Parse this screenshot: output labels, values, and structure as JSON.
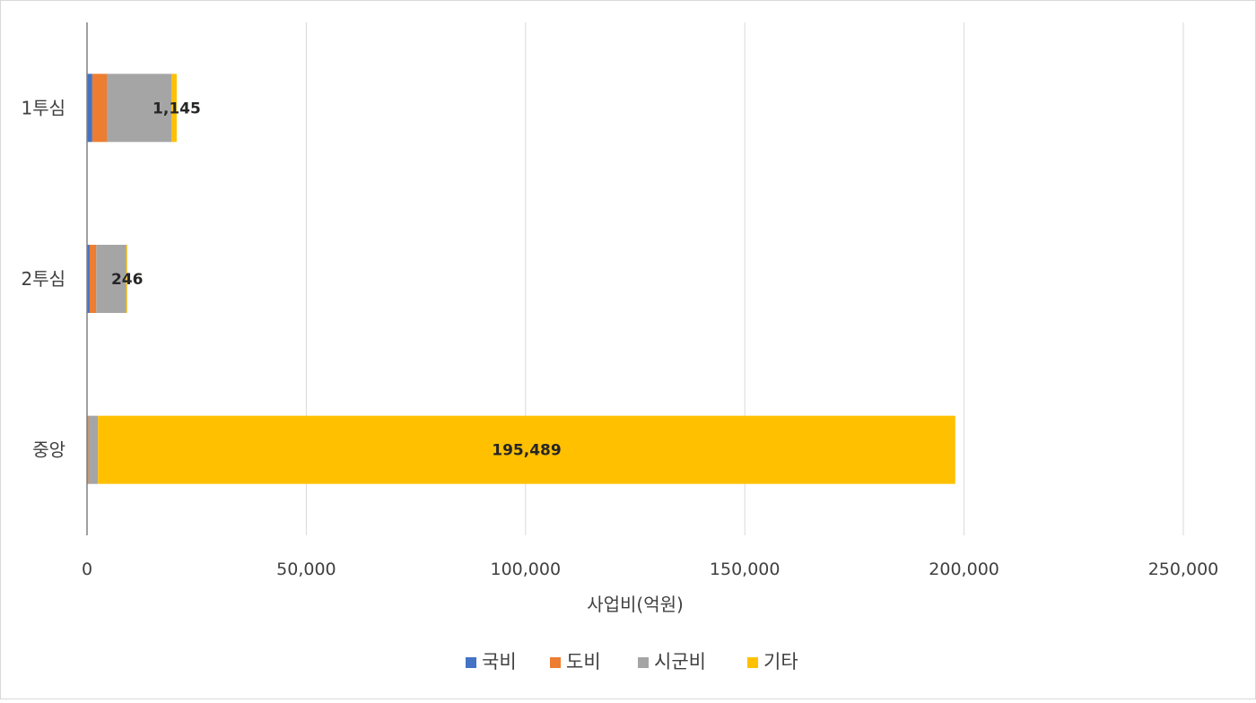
{
  "chart_data": {
    "type": "bar",
    "orientation": "horizontal",
    "stacked": true,
    "title": "",
    "xlabel": "사업비(억원)",
    "ylabel": "",
    "xlim": [
      0,
      250000
    ],
    "x_ticks": [
      0,
      50000,
      100000,
      150000,
      200000,
      250000
    ],
    "x_tick_labels": [
      "0",
      "50,000",
      "100,000",
      "150,000",
      "200,000",
      "250,000"
    ],
    "grid": "vertical",
    "legend_position": "bottom",
    "categories": [
      "1투심",
      "2투심",
      "중앙"
    ],
    "series": [
      {
        "name": "국비",
        "color": "#4472c4",
        "values": [
          1200,
          600,
          100
        ]
      },
      {
        "name": "도비",
        "color": "#ed7d31",
        "values": [
          3300,
          1500,
          200
        ]
      },
      {
        "name": "시군비",
        "color": "#a5a5a5",
        "values": [
          14800,
          6800,
          2200
        ]
      },
      {
        "name": "기타",
        "color": "#ffc000",
        "values": [
          1145,
          246,
          195489
        ]
      }
    ],
    "data_labels": [
      "1,145",
      "246",
      "195,489"
    ]
  }
}
